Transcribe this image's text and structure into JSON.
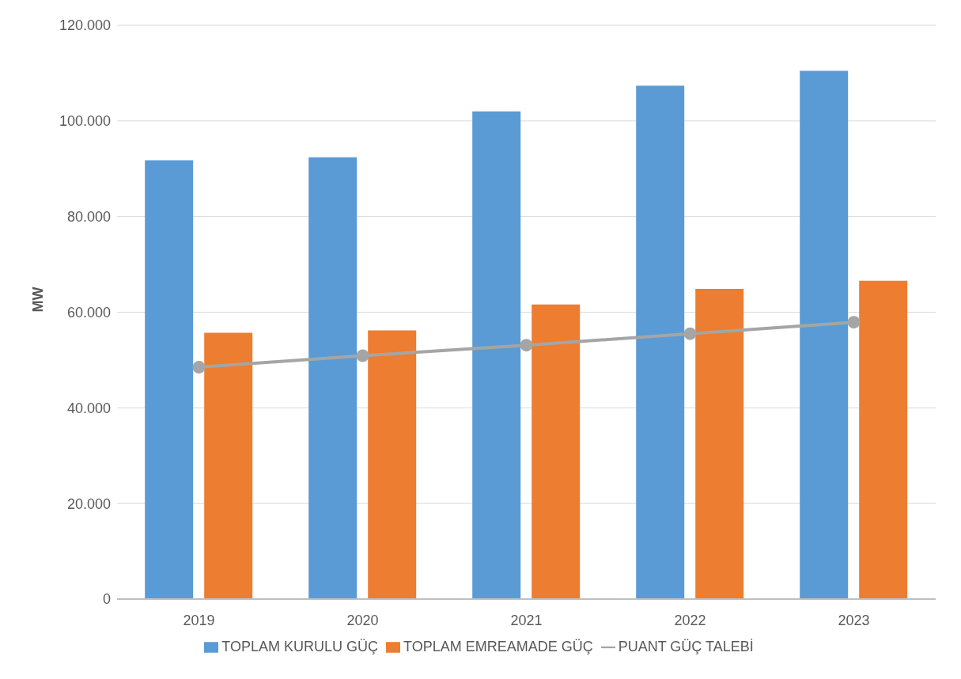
{
  "chart_data": {
    "type": "bar",
    "ylabel": "MW",
    "categories": [
      "2019",
      "2020",
      "2021",
      "2022",
      "2023"
    ],
    "series": [
      {
        "name": "TOPLAM KURULU GÜÇ",
        "color": "#5b9bd5",
        "values": [
          91800,
          92400,
          102000,
          107400,
          110500
        ]
      },
      {
        "name": "TOPLAM EMREAMADE GÜÇ",
        "color": "#ed7d31",
        "values": [
          55700,
          56200,
          61600,
          64900,
          66600
        ]
      },
      {
        "name": "PUANT GÜÇ TALEBİ",
        "type": "line",
        "color": "#a5a5a5",
        "values": [
          48500,
          50900,
          53100,
          55500,
          57900
        ]
      }
    ],
    "ylim": [
      0,
      120000
    ],
    "yticks": [
      0,
      {
        "value": 20000,
        "label": "20.000"
      },
      {
        "value": 40000,
        "label": "40.000"
      },
      {
        "value": 60000,
        "label": "60.000"
      },
      {
        "value": 80000,
        "label": "80.000"
      },
      {
        "value": 100000,
        "label": "100.000"
      },
      {
        "value": 120000,
        "label": "120.000"
      }
    ],
    "grid": "y",
    "legend": "bottom",
    "marker": "circle",
    "line_style": "solid"
  }
}
